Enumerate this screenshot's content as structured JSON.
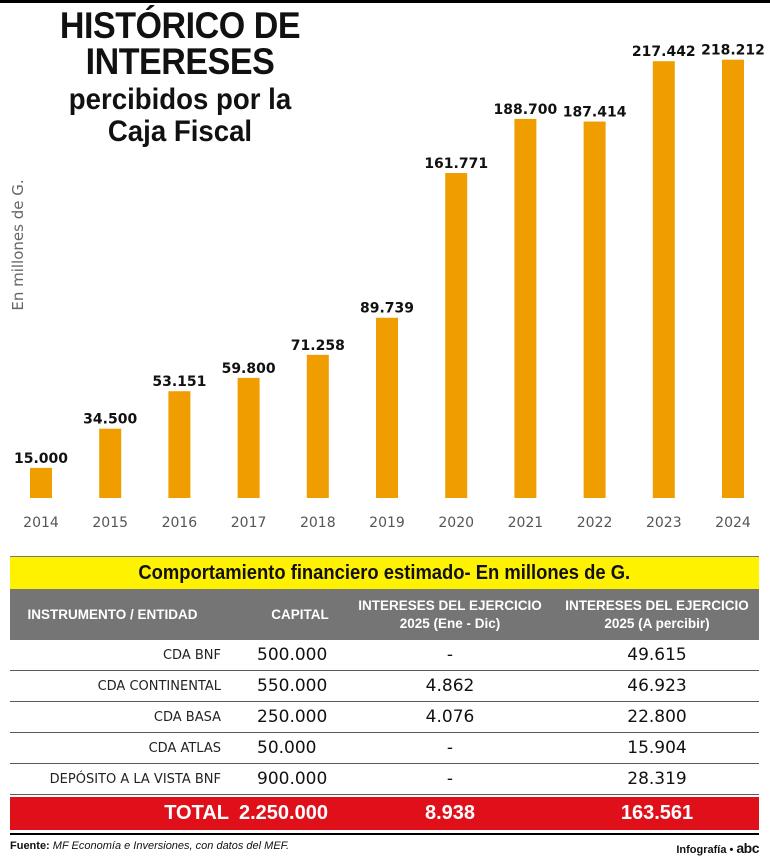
{
  "header": {
    "title_line1": "HISTÓRICO DE",
    "title_line2": "INTERESES",
    "subtitle_line1": "percibidos por la",
    "subtitle_line2": "Caja Fiscal"
  },
  "chart_data": {
    "type": "bar",
    "title": "HISTÓRICO DE INTERESES percibidos por la Caja Fiscal",
    "ylabel": "En millones de G.",
    "xlabel": "",
    "categories": [
      "2014",
      "2015",
      "2016",
      "2017",
      "2018",
      "2019",
      "2020",
      "2021",
      "2022",
      "2023",
      "2024"
    ],
    "values": [
      15000,
      34500,
      53151,
      59800,
      71258,
      89739,
      161771,
      188700,
      187414,
      217442,
      218212
    ],
    "value_labels": [
      "15.000",
      "34.500",
      "53.151",
      "59.800",
      "71.258",
      "89.739",
      "161.771",
      "188.700",
      "187.414",
      "217.442",
      "218.212"
    ],
    "ylim": [
      0,
      228000
    ],
    "grid": false,
    "bar_color": "#f09d00"
  },
  "table": {
    "title": "Comportamiento financiero estimado- En millones de G.",
    "headers": {
      "instrument": "INSTRUMENTO / ENTIDAD",
      "capital": "CAPITAL",
      "interest_year_l1": "INTERESES DEL EJERCICIO",
      "interest_year_l2": "2025 (Ene - Dic)",
      "interest_pending_l1": "INTERESES DEL EJERCICIO",
      "interest_pending_l2": "2025 (A percibir)"
    },
    "rows": [
      {
        "entity": "CDA BNF",
        "capital": "500.000",
        "interest_year": "-",
        "interest_pending": "49.615"
      },
      {
        "entity": "CDA CONTINENTAL",
        "capital": "550.000",
        "interest_year": "4.862",
        "interest_pending": "46.923"
      },
      {
        "entity": "CDA BASA",
        "capital": "250.000",
        "interest_year": "4.076",
        "interest_pending": "22.800"
      },
      {
        "entity": "CDA ATLAS",
        "capital": "50.000",
        "interest_year": "-",
        "interest_pending": "15.904"
      },
      {
        "entity": "DEPÓSITO A LA VISTA BNF",
        "capital": "900.000",
        "interest_year": "-",
        "interest_pending": "28.319"
      }
    ],
    "total": {
      "label": "TOTAL",
      "capital": "2.250.000",
      "interest_year": "8.938",
      "interest_pending": "163.561"
    }
  },
  "footer": {
    "source_label": "Fuente:",
    "source_text": "MF Economía e Inversiones, con datos del MEF.",
    "credit": "Infografía •",
    "logo": "abc"
  },
  "colors": {
    "bar": "#f09d00",
    "table_title_bg": "#fff200",
    "table_header_bg": "#757575",
    "total_bg": "#e0101b"
  }
}
